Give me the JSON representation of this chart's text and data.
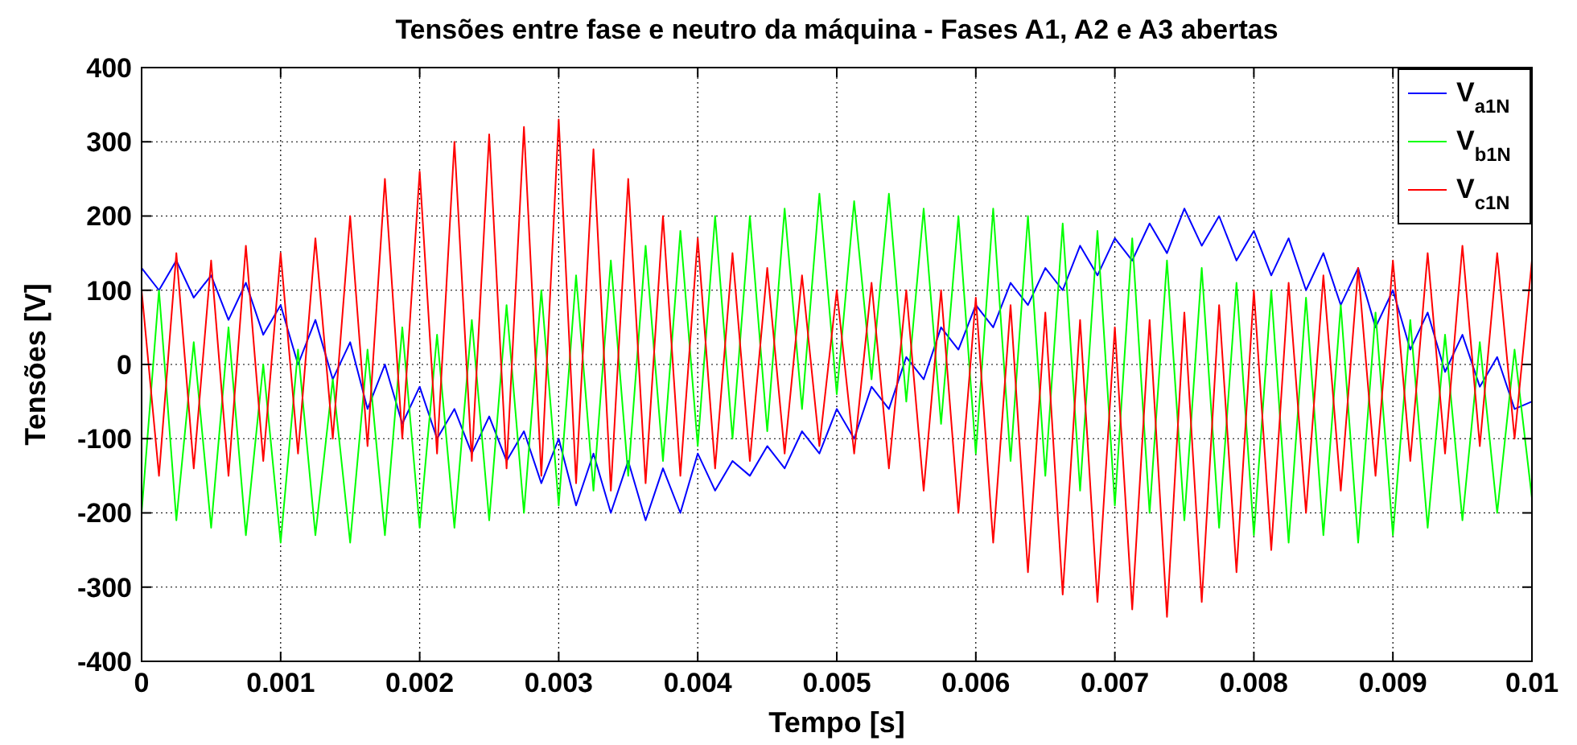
{
  "chart_data": {
    "type": "line",
    "title": "Tensões entre fase e neutro da máquina - Fases A1, A2 e A3 abertas",
    "xlabel": "Tempo [s]",
    "ylabel": "Tensões [V]",
    "x": [
      0,
      0.000125,
      0.00025,
      0.000375,
      0.0005,
      0.000625,
      0.00075,
      0.000875,
      0.001,
      0.001125,
      0.00125,
      0.001375,
      0.0015,
      0.001625,
      0.00175,
      0.001875,
      0.002,
      0.002125,
      0.00225,
      0.002375,
      0.0025,
      0.002625,
      0.00275,
      0.002875,
      0.003,
      0.003125,
      0.00325,
      0.003375,
      0.0035,
      0.003625,
      0.00375,
      0.003875,
      0.004,
      0.004125,
      0.00425,
      0.004375,
      0.0045,
      0.004625,
      0.00475,
      0.004875,
      0.005,
      0.005125,
      0.00525,
      0.005375,
      0.0055,
      0.005625,
      0.00575,
      0.005875,
      0.006,
      0.006125,
      0.00625,
      0.006375,
      0.0065,
      0.006625,
      0.00675,
      0.006875,
      0.007,
      0.007125,
      0.00725,
      0.007375,
      0.0075,
      0.007625,
      0.00775,
      0.007875,
      0.008,
      0.008125,
      0.00825,
      0.008375,
      0.0085,
      0.008625,
      0.00875,
      0.008875,
      0.009,
      0.009125,
      0.00925,
      0.009375,
      0.0095,
      0.009625,
      0.00975,
      0.009875,
      0.01
    ],
    "series": [
      {
        "name": "V$_{a1N}$",
        "color": "#0000ff",
        "values": [
          130,
          100,
          140,
          90,
          120,
          60,
          110,
          40,
          80,
          0,
          60,
          -20,
          30,
          -60,
          0,
          -80,
          -30,
          -100,
          -60,
          -120,
          -70,
          -130,
          -90,
          -160,
          -100,
          -190,
          -120,
          -200,
          -130,
          -210,
          -140,
          -200,
          -120,
          -170,
          -130,
          -150,
          -110,
          -140,
          -90,
          -120,
          -60,
          -100,
          -30,
          -60,
          10,
          -20,
          50,
          20,
          80,
          50,
          110,
          80,
          130,
          100,
          160,
          120,
          170,
          140,
          190,
          150,
          210,
          160,
          200,
          140,
          180,
          120,
          170,
          100,
          150,
          80,
          130,
          50,
          100,
          20,
          70,
          -10,
          40,
          -30,
          10,
          -60,
          -50
        ]
      },
      {
        "name": "V$_{b1N}$",
        "color": "#00ff00",
        "values": [
          -200,
          100,
          -210,
          30,
          -220,
          50,
          -230,
          0,
          -240,
          20,
          -230,
          -20,
          -240,
          20,
          -230,
          50,
          -220,
          40,
          -220,
          60,
          -210,
          80,
          -200,
          100,
          -190,
          120,
          -170,
          140,
          -150,
          160,
          -130,
          180,
          -110,
          200,
          -100,
          200,
          -90,
          210,
          -60,
          230,
          -40,
          220,
          -20,
          230,
          -50,
          210,
          -80,
          200,
          -120,
          210,
          -130,
          200,
          -150,
          190,
          -170,
          180,
          -190,
          170,
          -200,
          140,
          -210,
          130,
          -220,
          110,
          -230,
          100,
          -240,
          90,
          -230,
          80,
          -240,
          70,
          -230,
          60,
          -220,
          40,
          -210,
          30,
          -200,
          20,
          -180
        ]
      },
      {
        "name": "V$_{c1N}$",
        "color": "#ff0000",
        "values": [
          100,
          -150,
          150,
          -140,
          140,
          -150,
          160,
          -130,
          150,
          -120,
          170,
          -100,
          200,
          -110,
          250,
          -100,
          260,
          -120,
          300,
          -130,
          310,
          -140,
          320,
          -150,
          330,
          -160,
          290,
          -170,
          250,
          -160,
          200,
          -150,
          170,
          -140,
          150,
          -130,
          130,
          -120,
          120,
          -110,
          100,
          -120,
          110,
          -140,
          100,
          -170,
          100,
          -200,
          90,
          -240,
          80,
          -280,
          70,
          -310,
          60,
          -320,
          50,
          -330,
          60,
          -340,
          70,
          -320,
          80,
          -280,
          100,
          -250,
          110,
          -200,
          120,
          -170,
          130,
          -150,
          140,
          -130,
          150,
          -120,
          160,
          -110,
          150,
          -100,
          140
        ]
      }
    ],
    "xlim": [
      0,
      0.01
    ],
    "xticks": [
      0,
      0.001,
      0.002,
      0.003,
      0.004,
      0.005,
      0.006,
      0.007,
      0.008,
      0.009,
      0.01
    ],
    "ylim": [
      -400,
      400
    ],
    "yticks": [
      -400,
      -300,
      -200,
      -100,
      0,
      100,
      200,
      300,
      400
    ],
    "grid": true,
    "legend": "top right"
  }
}
